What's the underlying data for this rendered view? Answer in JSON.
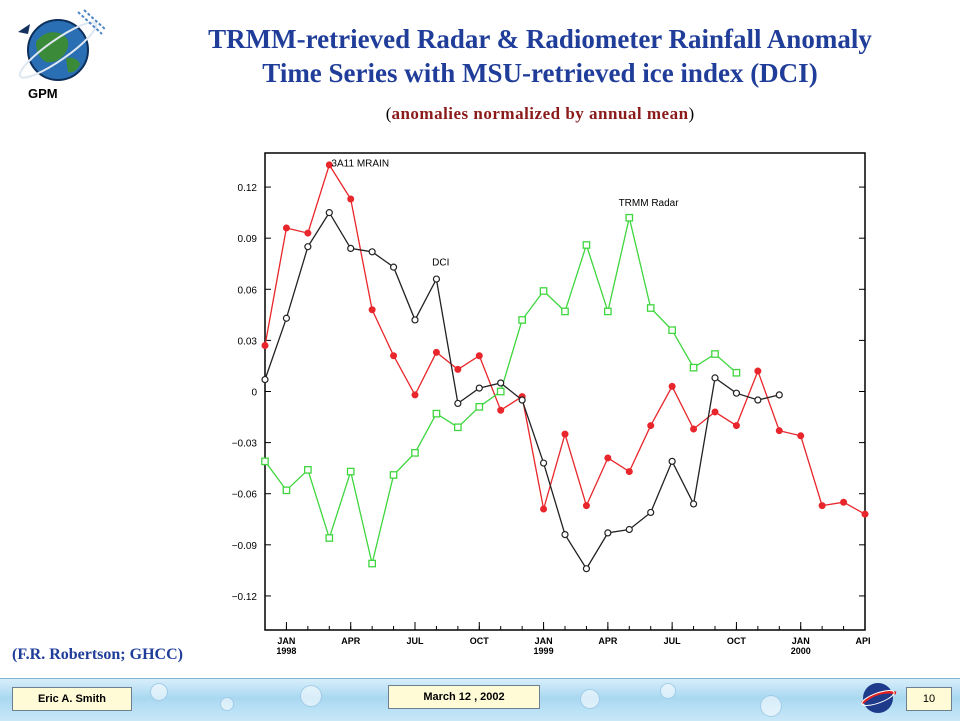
{
  "header": {
    "logo_label": "GPM",
    "title_line1": "TRMM-retrieved Radar & Radiometer Rainfall Anomaly",
    "title_line2": "Time Series with MSU-retrieved ice index (DCI)",
    "subtitle_open": "(",
    "subtitle": "anomalies normalized by annual mean",
    "subtitle_close": ")"
  },
  "credit": "(F.R. Robertson; GHCC)",
  "footer": {
    "author": "Eric A. Smith",
    "date": "March 12 , 2002",
    "page": "10"
  },
  "colors": {
    "title": "#1f3d99",
    "radiometer": "#e8262b",
    "radar": "#3fd63f",
    "dci": "#222222"
  },
  "chart_data": {
    "type": "line",
    "ylim": [
      -0.14,
      0.14
    ],
    "yticks": [
      {
        "v": 0.12,
        "label": "0.12"
      },
      {
        "v": 0.09,
        "label": "0.09"
      },
      {
        "v": 0.06,
        "label": "0.06"
      },
      {
        "v": 0.03,
        "label": "0.03"
      },
      {
        "v": 0,
        "label": "0"
      },
      {
        "v": -0.03,
        "label": "−0.03"
      },
      {
        "v": -0.06,
        "label": "−0.06"
      },
      {
        "v": -0.09,
        "label": "−0.09"
      },
      {
        "v": -0.12,
        "label": "−0.12"
      }
    ],
    "xlim": [
      0,
      28
    ],
    "xticks": [
      {
        "m": 1,
        "label": "JAN",
        "year": "1998"
      },
      {
        "m": 4,
        "label": "APR",
        "year": ""
      },
      {
        "m": 7,
        "label": "JUL",
        "year": ""
      },
      {
        "m": 10,
        "label": "OCT",
        "year": ""
      },
      {
        "m": 13,
        "label": "JAN",
        "year": "1999"
      },
      {
        "m": 16,
        "label": "APR",
        "year": ""
      },
      {
        "m": 19,
        "label": "JUL",
        "year": ""
      },
      {
        "m": 22,
        "label": "OCT",
        "year": ""
      },
      {
        "m": 25,
        "label": "JAN",
        "year": "2000"
      },
      {
        "m": 28,
        "label": "APR",
        "year": ""
      }
    ],
    "series": [
      {
        "name": "3A11 MRAIN",
        "key": "radiometer",
        "marker": "dot",
        "label_at": [
          3.1,
          0.132
        ],
        "x": [
          0,
          1,
          2,
          3,
          4,
          5,
          6,
          7,
          8,
          9,
          10,
          11,
          12,
          13,
          14,
          15,
          16,
          17,
          18,
          19,
          20,
          21,
          22,
          23,
          24,
          25,
          26,
          27,
          28
        ],
        "y": [
          0.027,
          0.096,
          0.093,
          0.133,
          0.113,
          0.048,
          0.021,
          -0.002,
          0.023,
          0.013,
          0.021,
          -0.011,
          -0.003,
          -0.069,
          -0.025,
          -0.067,
          -0.039,
          -0.047,
          -0.02,
          0.003,
          -0.022,
          -0.012,
          -0.02,
          0.012,
          -0.023,
          -0.026,
          -0.067,
          -0.065,
          -0.072
        ]
      },
      {
        "name": "TRMM Radar",
        "key": "radar",
        "marker": "square",
        "label_at": [
          16.5,
          0.109
        ],
        "x": [
          0,
          1,
          2,
          3,
          4,
          5,
          6,
          7,
          8,
          9,
          10,
          11,
          12,
          13,
          14,
          15,
          16,
          17,
          18,
          19,
          20,
          21,
          22
        ],
        "y": [
          -0.041,
          -0.058,
          -0.046,
          -0.086,
          -0.047,
          -0.101,
          -0.049,
          -0.036,
          -0.013,
          -0.021,
          -0.009,
          0.0,
          0.042,
          0.059,
          0.047,
          0.086,
          0.047,
          0.102,
          0.049,
          0.036,
          0.014,
          0.022,
          0.011
        ]
      },
      {
        "name": "DCI",
        "key": "dci",
        "marker": "circle",
        "label_at": [
          7.8,
          0.074
        ],
        "x": [
          0,
          1,
          2,
          3,
          4,
          5,
          6,
          7,
          8,
          9,
          10,
          11,
          12,
          13,
          14,
          15,
          16,
          17,
          18,
          19,
          20,
          21,
          22,
          23,
          24
        ],
        "y": [
          0.007,
          0.043,
          0.085,
          0.105,
          0.084,
          0.082,
          0.073,
          0.042,
          0.066,
          -0.007,
          0.002,
          0.005,
          -0.005,
          -0.042,
          -0.084,
          -0.104,
          -0.083,
          -0.081,
          -0.071,
          -0.041,
          -0.066,
          0.008,
          -0.001,
          -0.005,
          -0.002
        ]
      }
    ]
  }
}
